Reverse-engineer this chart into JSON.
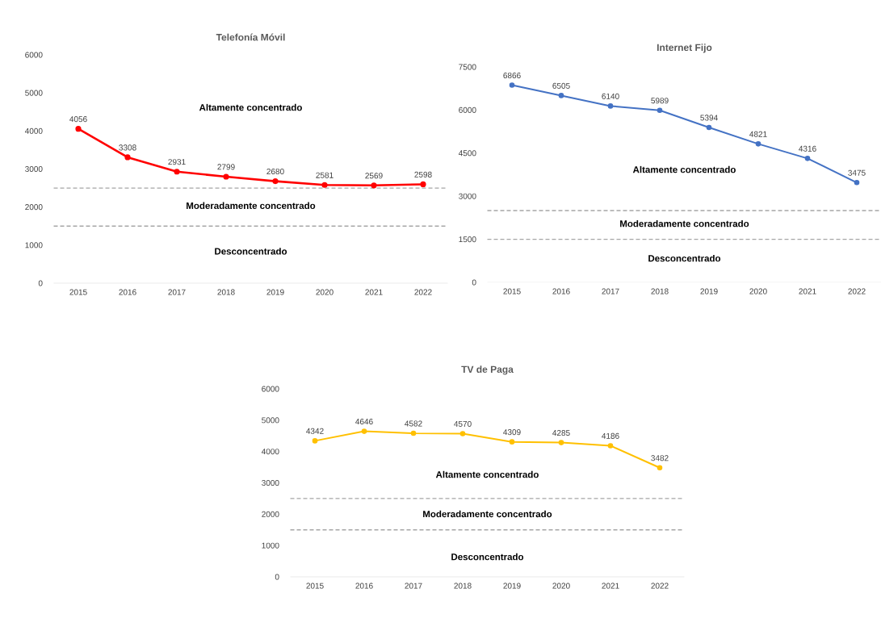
{
  "chart_data": [
    {
      "type": "line",
      "title": "Telefonía Móvil",
      "categories": [
        "2015",
        "2016",
        "2017",
        "2018",
        "2019",
        "2020",
        "2021",
        "2022"
      ],
      "series": [
        {
          "color": "#ff0000",
          "values": [
            4056,
            3308,
            2931,
            2799,
            2680,
            2581,
            2569,
            2598
          ]
        }
      ],
      "ylim": [
        0,
        6000
      ],
      "yticks": [
        0,
        1000,
        2000,
        3000,
        4000,
        5000,
        6000
      ],
      "marker": "circle",
      "data_labels": true,
      "ref_lines": [
        {
          "axis": "y",
          "value": 2500,
          "color": "#a6a6a6",
          "line_style": "dashed"
        },
        {
          "axis": "y",
          "value": 1500,
          "color": "#a6a6a6",
          "line_style": "dashed"
        }
      ],
      "annotations": [
        "Altamente concentrado",
        "Moderadamente concentrado",
        "Desconcentrado"
      ]
    },
    {
      "type": "line",
      "title": "Internet Fijo",
      "categories": [
        "2015",
        "2016",
        "2017",
        "2018",
        "2019",
        "2020",
        "2021",
        "2022"
      ],
      "series": [
        {
          "color": "#4472c4",
          "values": [
            6866,
            6505,
            6140,
            5989,
            5394,
            4821,
            4316,
            3475
          ]
        }
      ],
      "ylim": [
        0,
        7500
      ],
      "yticks": [
        0,
        1500,
        3000,
        4500,
        6000,
        7500
      ],
      "marker": "circle",
      "data_labels": true,
      "ref_lines": [
        {
          "axis": "y",
          "value": 2500,
          "color": "#a6a6a6",
          "line_style": "dashed"
        },
        {
          "axis": "y",
          "value": 1500,
          "color": "#a6a6a6",
          "line_style": "dashed"
        }
      ],
      "annotations": [
        "Altamente concentrado",
        "Moderadamente concentrado",
        "Desconcentrado"
      ]
    },
    {
      "type": "line",
      "title": "TV de Paga",
      "categories": [
        "2015",
        "2016",
        "2017",
        "2018",
        "2019",
        "2020",
        "2021",
        "2022"
      ],
      "series": [
        {
          "color": "#ffc000",
          "values": [
            4342,
            4646,
            4582,
            4570,
            4309,
            4285,
            4186,
            3482
          ]
        }
      ],
      "ylim": [
        0,
        6000
      ],
      "yticks": [
        0,
        1000,
        2000,
        3000,
        4000,
        5000,
        6000
      ],
      "marker": "circle",
      "data_labels": true,
      "ref_lines": [
        {
          "axis": "y",
          "value": 2500,
          "color": "#a6a6a6",
          "line_style": "dashed"
        },
        {
          "axis": "y",
          "value": 1500,
          "color": "#a6a6a6",
          "line_style": "dashed"
        }
      ],
      "annotations": [
        "Altamente concentrado",
        "Moderadamente concentrado",
        "Desconcentrado"
      ]
    }
  ]
}
